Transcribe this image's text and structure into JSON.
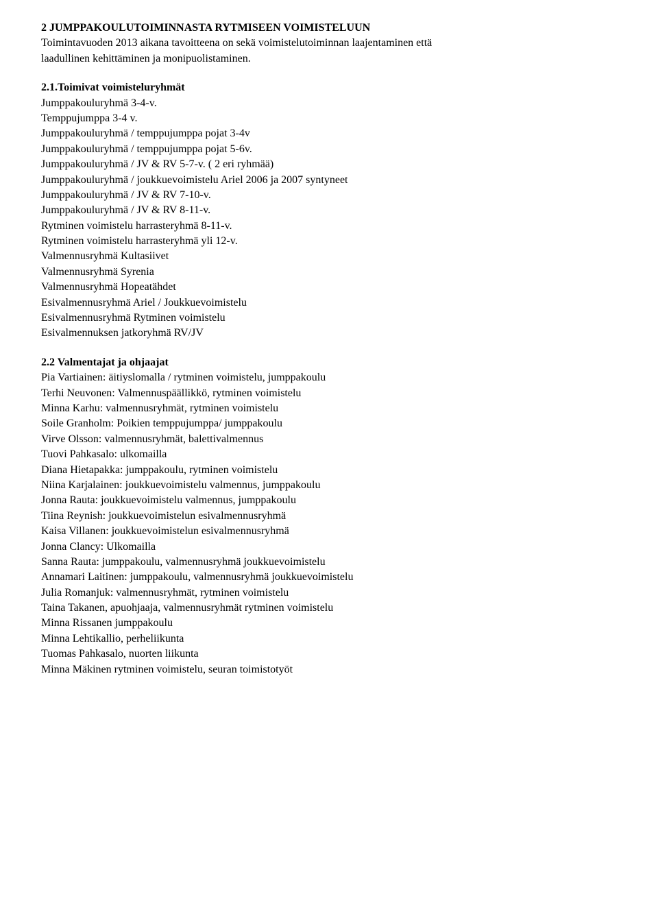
{
  "section1": {
    "heading": "2 JUMPPAKOULUTOIMINNASTA RYTMISEEN VOIMISTELUUN",
    "intro_line1": "Toimintavuoden 2013 aikana tavoitteena on sekä voimistelutoiminnan laajentaminen että",
    "intro_line2": "laadullinen kehittäminen ja monipuolistaminen."
  },
  "section2_1": {
    "heading": "2.1.Toimivat voimisteluryhmät",
    "items": [
      "Jumppakouluryhmä 3-4-v.",
      "Temppujumppa 3-4 v.",
      "Jumppakouluryhmä / temppujumppa pojat 3-4v",
      "Jumppakouluryhmä / temppujumppa pojat 5-6v.",
      "Jumppakouluryhmä / JV & RV 5-7-v. ( 2 eri ryhmää)",
      "Jumppakouluryhmä / joukkuevoimistelu Ariel 2006 ja 2007 syntyneet",
      "Jumppakouluryhmä / JV & RV 7-10-v.",
      "Jumppakouluryhmä / JV & RV 8-11-v.",
      "Rytminen voimistelu harrasteryhmä 8-11-v.",
      "Rytminen voimistelu harrasteryhmä yli 12-v.",
      "Valmennusryhmä Kultasiivet",
      "Valmennusryhmä Syrenia",
      "Valmennusryhmä Hopeatähdet",
      "Esivalmennusryhmä Ariel / Joukkuevoimistelu",
      "Esivalmennusryhmä Rytminen voimistelu",
      "Esivalmennuksen jatkoryhmä RV/JV"
    ]
  },
  "section2_2": {
    "heading": "2.2 Valmentajat ja ohjaajat",
    "items": [
      "Pia Vartiainen: äitiyslomalla / rytminen voimistelu, jumppakoulu",
      "Terhi Neuvonen: Valmennuspäällikkö, rytminen voimistelu",
      "Minna Karhu: valmennusryhmät, rytminen voimistelu",
      "Soile Granholm: Poikien temppujumppa/ jumppakoulu",
      "Virve Olsson: valmennusryhmät, balettivalmennus",
      "Tuovi Pahkasalo: ulkomailla",
      "Diana Hietapakka: jumppakoulu, rytminen voimistelu",
      "Niina Karjalainen: joukkuevoimistelu valmennus, jumppakoulu",
      "Jonna Rauta: joukkuevoimistelu valmennus, jumppakoulu",
      "Tiina Reynish: joukkuevoimistelun esivalmennusryhmä",
      "Kaisa Villanen: joukkuevoimistelun esivalmennusryhmä",
      "Jonna Clancy: Ulkomailla",
      "Sanna Rauta: jumppakoulu, valmennusryhmä joukkuevoimistelu",
      "Annamari Laitinen: jumppakoulu, valmennusryhmä joukkuevoimistelu",
      "Julia Romanjuk: valmennusryhmät, rytminen voimistelu",
      "Taina Takanen, apuohjaaja, valmennusryhmät rytminen voimistelu",
      "Minna Rissanen jumppakoulu",
      "Minna Lehtikallio, perheliikunta",
      "Tuomas Pahkasalo, nuorten liikunta",
      "Minna Mäkinen rytminen voimistelu, seuran toimistotyöt"
    ]
  },
  "styling": {
    "font_family": "Times New Roman",
    "font_size": 16,
    "text_color": "#000000",
    "background_color": "#ffffff",
    "line_height": 1.4
  }
}
